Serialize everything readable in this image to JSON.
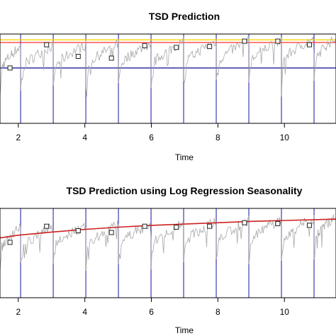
{
  "chart_data": [
    {
      "type": "line",
      "title": "TSD Prediction",
      "xlabel": "Time",
      "ylabel": "",
      "xlim": [
        1.45,
        11.55
      ],
      "ylim": [
        0,
        1
      ],
      "xticks": [
        2,
        4,
        6,
        8,
        10
      ],
      "xtick_labels": [
        "2",
        "4",
        "6",
        "8",
        "10"
      ],
      "period_lines": [
        2.07,
        3.05,
        4.03,
        5.01,
        5.99,
        6.97,
        7.95,
        8.93,
        9.91,
        10.89
      ],
      "horizontal_lines": [
        {
          "color": "#ffd700",
          "y": 0.935
        },
        {
          "color": "#ff4040",
          "y": 0.905
        },
        {
          "color": "#3030a0",
          "y": 0.62
        }
      ],
      "markers": {
        "x": [
          1.75,
          2.85,
          3.8,
          4.8,
          5.8,
          6.75,
          7.75,
          8.8,
          9.8,
          10.75
        ],
        "y": [
          0.62,
          0.88,
          0.75,
          0.73,
          0.87,
          0.85,
          0.86,
          0.92,
          0.92,
          0.88
        ]
      },
      "colors": {
        "series": "#a8a8a8",
        "period": "#3b3bb0",
        "marker": "#222222"
      }
    },
    {
      "type": "line",
      "title": "TSD Prediction using Log Regression Seasonality",
      "xlabel": "Time",
      "ylabel": "",
      "xlim": [
        1.45,
        11.55
      ],
      "ylim": [
        0,
        1
      ],
      "xticks": [
        2,
        4,
        6,
        8,
        10
      ],
      "xtick_labels": [
        "2",
        "4",
        "6",
        "8",
        "10"
      ],
      "period_lines": [
        2.07,
        3.05,
        4.03,
        5.01,
        5.99,
        6.97,
        7.95,
        8.93,
        9.91,
        10.89
      ],
      "trend": {
        "x": [
          1.45,
          2,
          3,
          4,
          5,
          6,
          7,
          8,
          9,
          10,
          11,
          11.55
        ],
        "y": [
          0.67,
          0.7,
          0.735,
          0.765,
          0.79,
          0.81,
          0.825,
          0.84,
          0.855,
          0.865,
          0.875,
          0.88
        ]
      },
      "markers": {
        "x": [
          1.75,
          2.85,
          3.8,
          4.8,
          5.8,
          6.75,
          7.75,
          8.8,
          9.8,
          10.75
        ],
        "y": [
          0.62,
          0.8,
          0.75,
          0.73,
          0.8,
          0.79,
          0.8,
          0.84,
          0.83,
          0.81
        ]
      },
      "colors": {
        "series": "#a8a8a8",
        "period": "#3b3bb0",
        "trend": "#cc2222",
        "marker": "#222222"
      }
    }
  ]
}
